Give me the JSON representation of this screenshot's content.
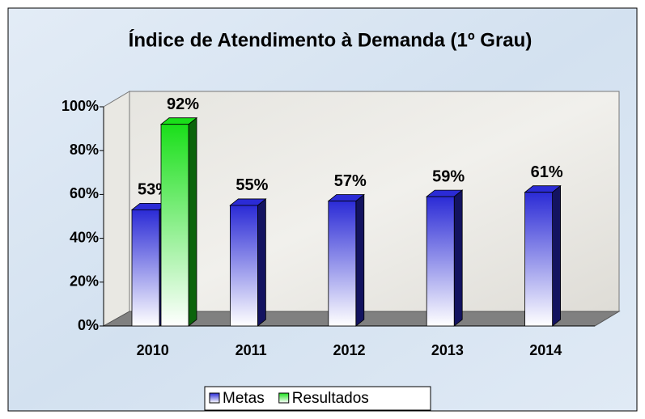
{
  "chart_data": {
    "type": "bar",
    "title": "Índice de Atendimento à Demanda (1º Grau)",
    "categories": [
      "2010",
      "2011",
      "2012",
      "2013",
      "2014"
    ],
    "series": [
      {
        "name": "Metas",
        "color": "#2b2bd6",
        "values": [
          53,
          55,
          57,
          59,
          61
        ],
        "value_labels": [
          "53%",
          "55%",
          "57%",
          "59%",
          "61%"
        ]
      },
      {
        "name": "Resultados",
        "color": "#1adf1a",
        "values": [
          92,
          null,
          null,
          null,
          null
        ],
        "value_labels": [
          "92%",
          null,
          null,
          null,
          null
        ]
      }
    ],
    "ylim": [
      0,
      100
    ],
    "yticks": [
      {
        "value": 0,
        "label": "0%"
      },
      {
        "value": 20,
        "label": "20%"
      },
      {
        "value": 40,
        "label": "40%"
      },
      {
        "value": 60,
        "label": "60%"
      },
      {
        "value": 80,
        "label": "80%"
      },
      {
        "value": 100,
        "label": "100%"
      }
    ],
    "grid": false,
    "legend": "bottom"
  }
}
